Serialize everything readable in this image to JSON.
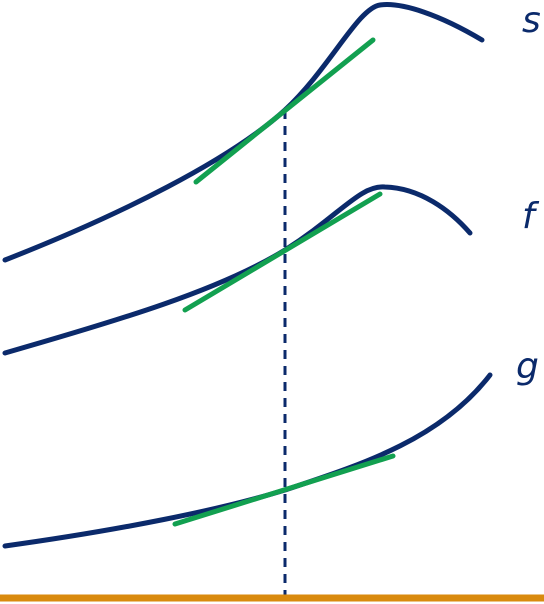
{
  "curves": [
    {
      "label": "s"
    },
    {
      "label": "f"
    },
    {
      "label": "g"
    }
  ]
}
